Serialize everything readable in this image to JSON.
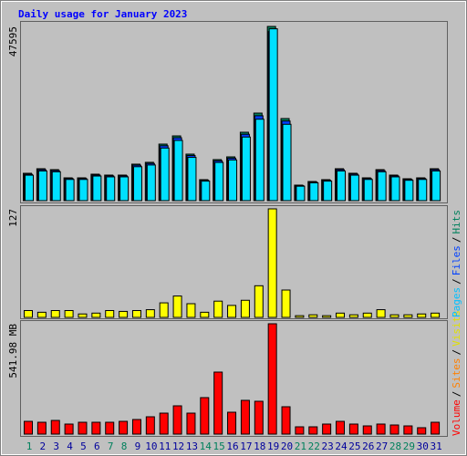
{
  "chart_data": [
    {
      "type": "bar",
      "title": "Daily usage for January 2023",
      "series": [
        {
          "name": "Hits",
          "color": "#00805c",
          "values": [
            7476,
            8720,
            8470,
            6230,
            6230,
            7230,
            6980,
            6980,
            9970,
            10470,
            15450,
            17690,
            12710,
            5730,
            11210,
            11960,
            18690,
            23920,
            47595,
            22430,
            4240,
            5230,
            5730,
            8720,
            7480,
            6230,
            8470,
            6980,
            5980,
            6230,
            8720
          ]
        },
        {
          "name": "Files",
          "color": "#0040ff",
          "values": [
            7200,
            8450,
            8200,
            6050,
            6050,
            7000,
            6770,
            6770,
            9680,
            10160,
            15000,
            17180,
            12330,
            5560,
            10880,
            11600,
            18130,
            23200,
            46170,
            21760,
            4110,
            5070,
            5560,
            8460,
            7260,
            6040,
            8220,
            6770,
            5800,
            6040,
            8460
          ]
        },
        {
          "name": "Pages",
          "color": "#00e0ff",
          "values": [
            6950,
            8110,
            7880,
            5790,
            5790,
            6720,
            6490,
            6490,
            9270,
            9740,
            14370,
            16450,
            11820,
            5330,
            10430,
            11120,
            17380,
            22250,
            46950,
            20860,
            3940,
            4860,
            5330,
            8110,
            6960,
            5790,
            7880,
            6490,
            5560,
            5790,
            8110
          ]
        }
      ],
      "ylim": [
        0,
        47595
      ],
      "yticks": [
        47595
      ]
    },
    {
      "type": "bar",
      "series": [
        {
          "name": "Visits",
          "color": "#ffff00",
          "values": [
            8,
            6,
            8,
            8,
            4,
            5,
            8,
            7,
            8,
            9,
            17,
            25,
            16,
            6,
            19,
            14,
            20,
            37,
            127,
            32,
            2,
            3,
            2,
            5,
            3,
            5,
            9,
            3,
            3,
            4,
            5
          ]
        }
      ],
      "ylim": [
        0,
        127
      ],
      "yticks": [
        127
      ]
    },
    {
      "type": "bar",
      "categories": [
        "1",
        "2",
        "3",
        "4",
        "5",
        "6",
        "7",
        "8",
        "9",
        "10",
        "11",
        "12",
        "13",
        "14",
        "15",
        "16",
        "17",
        "18",
        "19",
        "20",
        "21",
        "22",
        "23",
        "24",
        "25",
        "26",
        "27",
        "28",
        "29",
        "30",
        "31"
      ],
      "category_colors": [
        "#00805c",
        "#00009c",
        "#00009c",
        "#00009c",
        "#00009c",
        "#00009c",
        "#00805c",
        "#00805c",
        "#00009c",
        "#00009c",
        "#00009c",
        "#00009c",
        "#00009c",
        "#00805c",
        "#00805c",
        "#00009c",
        "#00009c",
        "#00009c",
        "#00009c",
        "#00009c",
        "#00805c",
        "#00805c",
        "#00009c",
        "#00009c",
        "#00009c",
        "#00009c",
        "#00009c",
        "#00805c",
        "#00805c",
        "#00009c",
        "#00009c"
      ],
      "series": [
        {
          "name": "Volume",
          "color": "#ff0000",
          "values": [
            62.7,
            58.2,
            67.2,
            49.3,
            58.2,
            58.2,
            58.2,
            62.7,
            71.7,
            85.1,
            103,
            138.9,
            103,
            179.2,
            304.6,
            107.5,
            165.8,
            161.3,
            541.98,
            134.4,
            35.8,
            35.8,
            49.3,
            62.7,
            49.3,
            40.3,
            49.3,
            44.8,
            40.3,
            31.4,
            58.2
          ]
        }
      ],
      "ylim": [
        0,
        541.98
      ],
      "yticks": [
        {
          "value": 541.98,
          "label": "541.98 MB"
        }
      ]
    }
  ],
  "legend_separator": "/",
  "legend": [
    [
      {
        "label": "Volume",
        "color": "#ff0000"
      },
      {
        "label": "Sites",
        "color": "#ff8000"
      },
      {
        "label": "Visits",
        "color": "#e0e000"
      }
    ],
    [
      {
        "label": "Pages",
        "color": "#00c0ff"
      },
      {
        "label": "Files",
        "color": "#0040ff"
      },
      {
        "label": "Hits",
        "color": "#00805c"
      }
    ]
  ]
}
